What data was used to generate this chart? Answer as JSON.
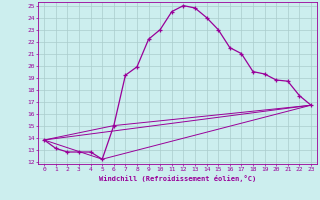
{
  "xlabel": "Windchill (Refroidissement éolien,°C)",
  "bg_color": "#cceeee",
  "line_color": "#990099",
  "grid_color": "#aacccc",
  "xlim": [
    -0.5,
    23.5
  ],
  "ylim": [
    11.8,
    25.3
  ],
  "xticks": [
    0,
    1,
    2,
    3,
    4,
    5,
    6,
    7,
    8,
    9,
    10,
    11,
    12,
    13,
    14,
    15,
    16,
    17,
    18,
    19,
    20,
    21,
    22,
    23
  ],
  "yticks": [
    12,
    13,
    14,
    15,
    16,
    17,
    18,
    19,
    20,
    21,
    22,
    23,
    24,
    25
  ],
  "line1_x": [
    0,
    1,
    2,
    3,
    4,
    5,
    6,
    7,
    8,
    9,
    10,
    11,
    12,
    13,
    14,
    15,
    16,
    17,
    18,
    19,
    20,
    21,
    22,
    23
  ],
  "line1_y": [
    13.8,
    13.1,
    12.8,
    12.8,
    12.8,
    12.2,
    15.0,
    19.2,
    19.9,
    22.2,
    23.0,
    24.5,
    25.0,
    24.8,
    24.0,
    23.0,
    21.5,
    21.0,
    19.5,
    19.3,
    18.8,
    18.7,
    17.5,
    16.7
  ],
  "line2_x": [
    0,
    23
  ],
  "line2_y": [
    13.8,
    16.7
  ],
  "line3_x": [
    0,
    5,
    23
  ],
  "line3_y": [
    13.8,
    12.2,
    16.7
  ],
  "line4_x": [
    0,
    6,
    23
  ],
  "line4_y": [
    13.8,
    15.0,
    16.7
  ]
}
